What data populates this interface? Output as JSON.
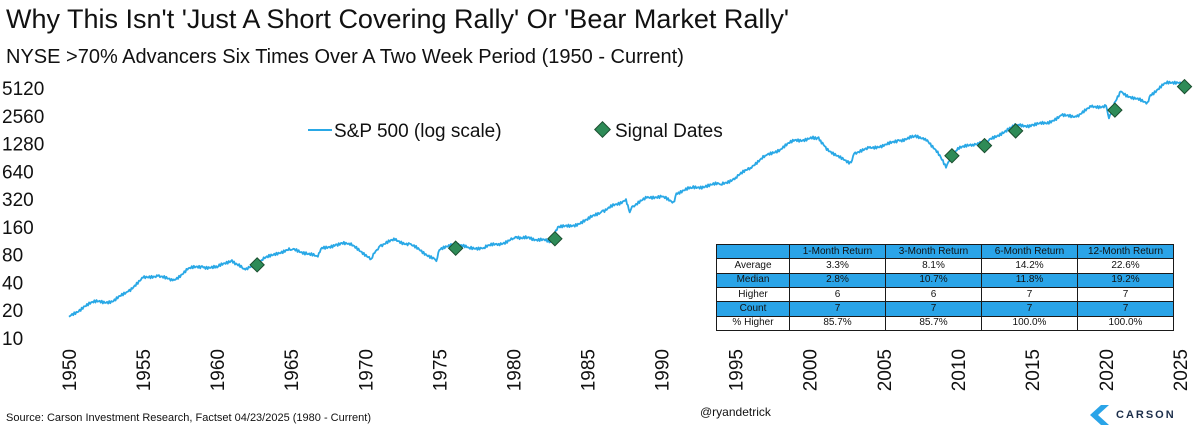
{
  "title": "Why This Isn't 'Just A Short Covering Rally' Or 'Bear Market Rally'",
  "subtitle": "NYSE >70% Advancers Six Times Over A Two Week Period (1950 - Current)",
  "source": "Source: Carson Investment Research, Factset 04/23/2025 (1980 - Current)",
  "handle": "@ryandetrick",
  "logo_text": "CARSON",
  "colors": {
    "line": "#29a8e6",
    "marker": "#2e8b57",
    "table_blue": "#2aa4e8"
  },
  "chart_data": {
    "type": "line",
    "title": "Why This Isn't 'Just A Short Covering Rally' Or 'Bear Market Rally'",
    "subtitle": "NYSE >70% Advancers Six Times Over A Two Week Period (1950 - Current)",
    "y_scale": "log2",
    "ylim": [
      10,
      5120
    ],
    "xlim": [
      1950,
      2025.4
    ],
    "y_ticks": [
      "5120",
      "2560",
      "1280",
      "640",
      "320",
      "160",
      "80",
      "40",
      "20",
      "10"
    ],
    "x_ticks": [
      "1950",
      "1955",
      "1960",
      "1965",
      "1970",
      "1975",
      "1980",
      "1985",
      "1990",
      "1995",
      "2000",
      "2005",
      "2010",
      "2015",
      "2020",
      "2025"
    ],
    "legend": {
      "placement": "top-center",
      "line_label": "S&P 500 (log scale)",
      "marker_label": "Signal Dates"
    },
    "series": [
      {
        "name": "S&P 500 (log scale)",
        "x": [
          1950,
          1951,
          1952,
          1953,
          1954,
          1955,
          1956,
          1957,
          1958,
          1959,
          1960,
          1961,
          1961.9,
          1962.5,
          1963,
          1964,
          1965,
          1966,
          1966.8,
          1967,
          1968,
          1968.9,
          1970.4,
          1971,
          1972,
          1973,
          1974.8,
          1975,
          1976,
          1977,
          1978,
          1979,
          1980,
          1980.9,
          1982.5,
          1983,
          1984,
          1985,
          1986,
          1987.6,
          1987.85,
          1988,
          1989,
          1990,
          1990.8,
          1991,
          1992,
          1993,
          1994,
          1995,
          1996,
          1997,
          1998,
          1999,
          2000,
          2000.6,
          2001,
          2002,
          2002.8,
          2003,
          2004,
          2005,
          2006,
          2007,
          2007.8,
          2008.5,
          2009.2,
          2009.5,
          2010,
          2011,
          2012,
          2013,
          2014,
          2015,
          2016,
          2017,
          2018,
          2019,
          2020,
          2020.2,
          2020.5,
          2021,
          2022,
          2022.8,
          2023,
          2024,
          2025,
          2025.3
        ],
        "values": [
          17,
          22,
          25,
          25,
          32,
          45,
          47,
          42,
          55,
          60,
          58,
          70,
          55,
          60,
          70,
          84,
          90,
          85,
          76,
          92,
          103,
          106,
          72,
          100,
          115,
          105,
          68,
          90,
          105,
          95,
          95,
          105,
          120,
          120,
          110,
          160,
          165,
          190,
          240,
          320,
          230,
          265,
          330,
          340,
          300,
          370,
          420,
          450,
          460,
          550,
          700,
          950,
          1100,
          1400,
          1450,
          1500,
          1200,
          900,
          800,
          1000,
          1150,
          1200,
          1400,
          1500,
          1450,
          1100,
          700,
          900,
          1150,
          1250,
          1350,
          1700,
          2000,
          2050,
          2100,
          2600,
          2500,
          3200,
          3300,
          2400,
          3200,
          4700,
          3900,
          3600,
          4300,
          5800,
          5900,
          5300
        ]
      }
    ],
    "signals": {
      "name": "Signal Dates",
      "x": [
        1962.7,
        1976.1,
        1982.8,
        2009.6,
        2011.8,
        2013.9,
        2020.6,
        2025.3
      ],
      "values": [
        62,
        94,
        119,
        945,
        1215,
        1755,
        2950,
        5300
      ]
    }
  },
  "table": {
    "headers": [
      "",
      "1-Month Return",
      "3-Month Return",
      "6-Month Return",
      "12-Month Return"
    ],
    "rows": [
      {
        "label": "Average",
        "values": [
          "3.3%",
          "8.1%",
          "14.2%",
          "22.6%"
        ]
      },
      {
        "label": "Median",
        "values": [
          "2.8%",
          "10.7%",
          "11.8%",
          "19.2%"
        ]
      },
      {
        "label": "Higher",
        "values": [
          "6",
          "6",
          "7",
          "7"
        ]
      },
      {
        "label": "Count",
        "values": [
          "7",
          "7",
          "7",
          "7"
        ]
      },
      {
        "label": "% Higher",
        "values": [
          "85.7%",
          "85.7%",
          "100.0%",
          "100.0%"
        ]
      }
    ]
  }
}
